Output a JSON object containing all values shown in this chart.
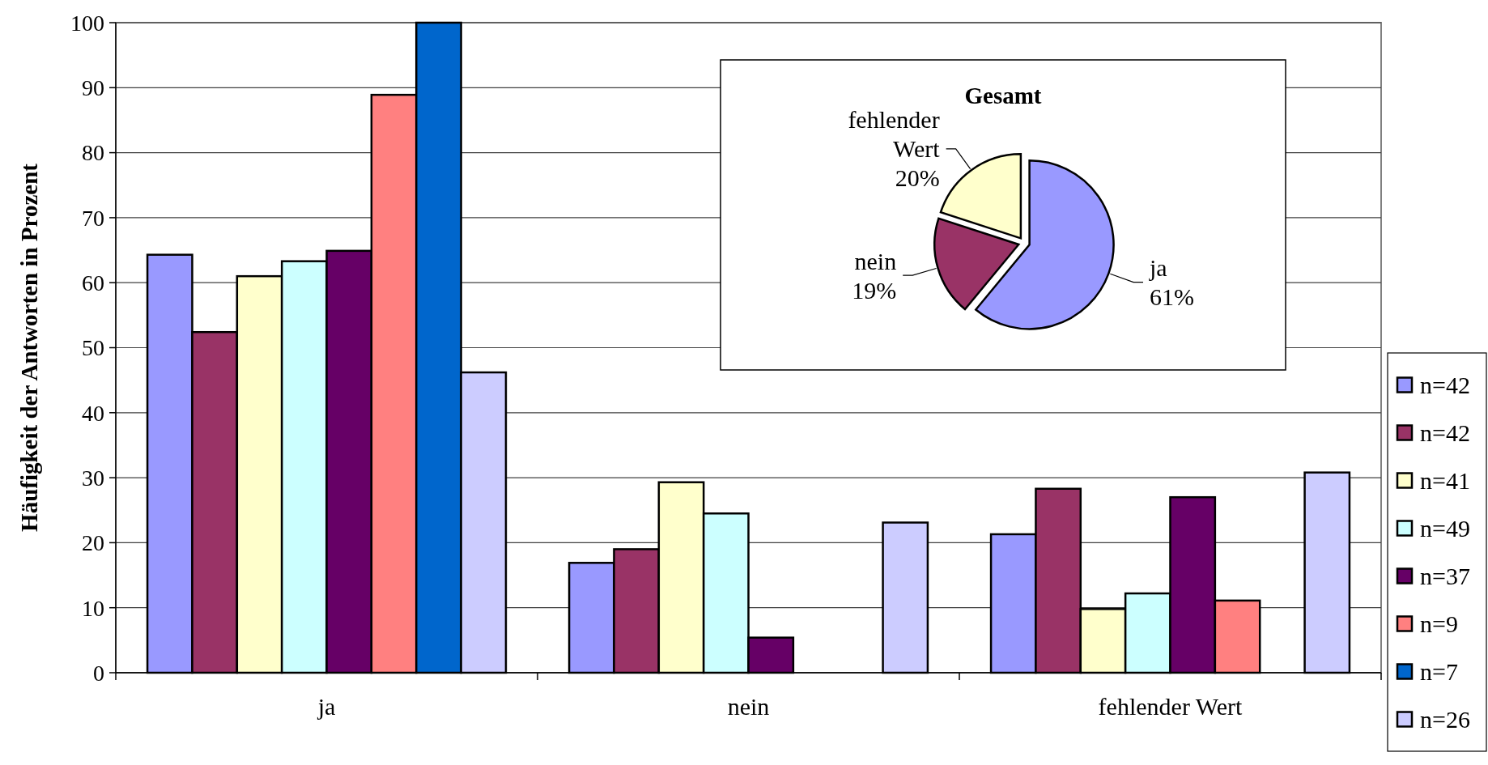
{
  "chart_data": [
    {
      "type": "bar",
      "ylabel": "Häufigkeit der Antworten in Prozent",
      "categories": [
        "ja",
        "nein",
        "fehlender Wert"
      ],
      "series": [
        {
          "name": "n=42",
          "color": "#9999ff",
          "values": [
            64.3,
            16.9,
            21.3
          ]
        },
        {
          "name": "n=42",
          "color": "#993366",
          "values": [
            52.4,
            19.0,
            28.3
          ]
        },
        {
          "name": "n=41",
          "color": "#ffffcc",
          "values": [
            61.0,
            29.3,
            9.8
          ]
        },
        {
          "name": "n=49",
          "color": "#ccffff",
          "values": [
            63.3,
            24.5,
            12.2
          ]
        },
        {
          "name": "n=37",
          "color": "#660066",
          "values": [
            64.9,
            5.4,
            27.0
          ]
        },
        {
          "name": "n=9",
          "color": "#ff8080",
          "values": [
            88.9,
            0,
            11.1
          ]
        },
        {
          "name": "n=7",
          "color": "#0066cc",
          "values": [
            100,
            0,
            0
          ]
        },
        {
          "name": "n=26",
          "color": "#ccccff",
          "values": [
            46.2,
            23.1,
            30.8
          ]
        }
      ],
      "ylim": [
        0,
        100
      ],
      "yticks": [
        0,
        10,
        20,
        30,
        40,
        50,
        60,
        70,
        80,
        90,
        100
      ],
      "grid": "y",
      "legend": "right"
    },
    {
      "type": "pie",
      "title": "Gesamt",
      "categories": [
        "ja",
        "nein",
        "fehlender Wert"
      ],
      "values": [
        61,
        19,
        20
      ],
      "colors": [
        "#9999ff",
        "#993366",
        "#ffffcc"
      ],
      "value_labels": [
        "61%",
        "19%",
        "20%"
      ]
    }
  ]
}
